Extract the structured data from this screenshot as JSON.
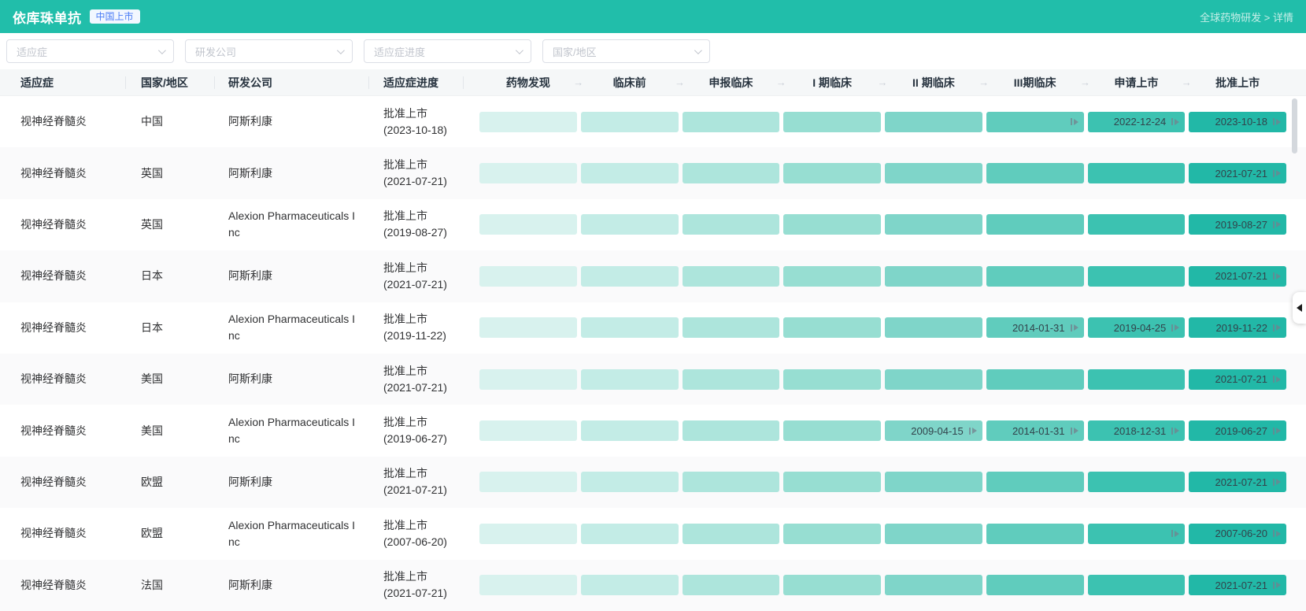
{
  "topbar": {
    "title": "依库珠单抗",
    "badge": "中国上市",
    "breadcrumb": "全球药物研发 > 详情"
  },
  "filters": {
    "placeholders": [
      "适应症",
      "研发公司",
      "适应症进度",
      "国家/地区"
    ]
  },
  "colors": {
    "accent": "#21BEAA",
    "badge_text": "#4D7EF6",
    "stage_colors": [
      "#D8F2EE",
      "#C3ECE6",
      "#ADE5DC",
      "#97DED2",
      "#7FD5C9",
      "#60CCBD",
      "#3CC2B1",
      "#22B8A7"
    ]
  },
  "table": {
    "columns": [
      "适应症",
      "国家/地区",
      "研发公司",
      "适应症进度"
    ],
    "stages": [
      "药物发现",
      "临床前",
      "申报临床",
      "I 期临床",
      "II 期临床",
      "III期临床",
      "申请上市",
      "批准上市"
    ],
    "rows": [
      {
        "indication": "视神经脊髓炎",
        "region": "中国",
        "company": "阿斯利康",
        "progress": "批准上市",
        "progress_date": "(2023-10-18)",
        "milestones": [
          null,
          null,
          null,
          null,
          null,
          {
            "date": ""
          },
          {
            "date": "2022-12-24"
          },
          {
            "date": "2023-10-18"
          }
        ]
      },
      {
        "indication": "视神经脊髓炎",
        "region": "英国",
        "company": "阿斯利康",
        "progress": "批准上市",
        "progress_date": "(2021-07-21)",
        "milestones": [
          null,
          null,
          null,
          null,
          null,
          null,
          null,
          {
            "date": "2021-07-21"
          }
        ]
      },
      {
        "indication": "视神经脊髓炎",
        "region": "英国",
        "company": "Alexion Pharmaceuticals Inc",
        "progress": "批准上市",
        "progress_date": "(2019-08-27)",
        "milestones": [
          null,
          null,
          null,
          null,
          null,
          null,
          null,
          {
            "date": "2019-08-27"
          }
        ]
      },
      {
        "indication": "视神经脊髓炎",
        "region": "日本",
        "company": "阿斯利康",
        "progress": "批准上市",
        "progress_date": "(2021-07-21)",
        "milestones": [
          null,
          null,
          null,
          null,
          null,
          null,
          null,
          {
            "date": "2021-07-21"
          }
        ]
      },
      {
        "indication": "视神经脊髓炎",
        "region": "日本",
        "company": "Alexion Pharmaceuticals Inc",
        "progress": "批准上市",
        "progress_date": "(2019-11-22)",
        "milestones": [
          null,
          null,
          null,
          null,
          null,
          {
            "date": "2014-01-31"
          },
          {
            "date": "2019-04-25"
          },
          {
            "date": "2019-11-22"
          }
        ]
      },
      {
        "indication": "视神经脊髓炎",
        "region": "美国",
        "company": "阿斯利康",
        "progress": "批准上市",
        "progress_date": "(2021-07-21)",
        "milestones": [
          null,
          null,
          null,
          null,
          null,
          null,
          null,
          {
            "date": "2021-07-21"
          }
        ]
      },
      {
        "indication": "视神经脊髓炎",
        "region": "美国",
        "company": "Alexion Pharmaceuticals Inc",
        "progress": "批准上市",
        "progress_date": "(2019-06-27)",
        "milestones": [
          null,
          null,
          null,
          null,
          {
            "date": "2009-04-15"
          },
          {
            "date": "2014-01-31"
          },
          {
            "date": "2018-12-31"
          },
          {
            "date": "2019-06-27"
          }
        ]
      },
      {
        "indication": "视神经脊髓炎",
        "region": "欧盟",
        "company": "阿斯利康",
        "progress": "批准上市",
        "progress_date": "(2021-07-21)",
        "milestones": [
          null,
          null,
          null,
          null,
          null,
          null,
          null,
          {
            "date": "2021-07-21"
          }
        ]
      },
      {
        "indication": "视神经脊髓炎",
        "region": "欧盟",
        "company": "Alexion Pharmaceuticals Inc",
        "progress": "批准上市",
        "progress_date": "(2007-06-20)",
        "milestones": [
          null,
          null,
          null,
          null,
          null,
          null,
          {
            "date": ""
          },
          {
            "date": "2007-06-20"
          }
        ]
      },
      {
        "indication": "视神经脊髓炎",
        "region": "法国",
        "company": "阿斯利康",
        "progress": "批准上市",
        "progress_date": "(2021-07-21)",
        "milestones": [
          null,
          null,
          null,
          null,
          null,
          null,
          null,
          {
            "date": "2021-07-21"
          }
        ]
      }
    ]
  }
}
